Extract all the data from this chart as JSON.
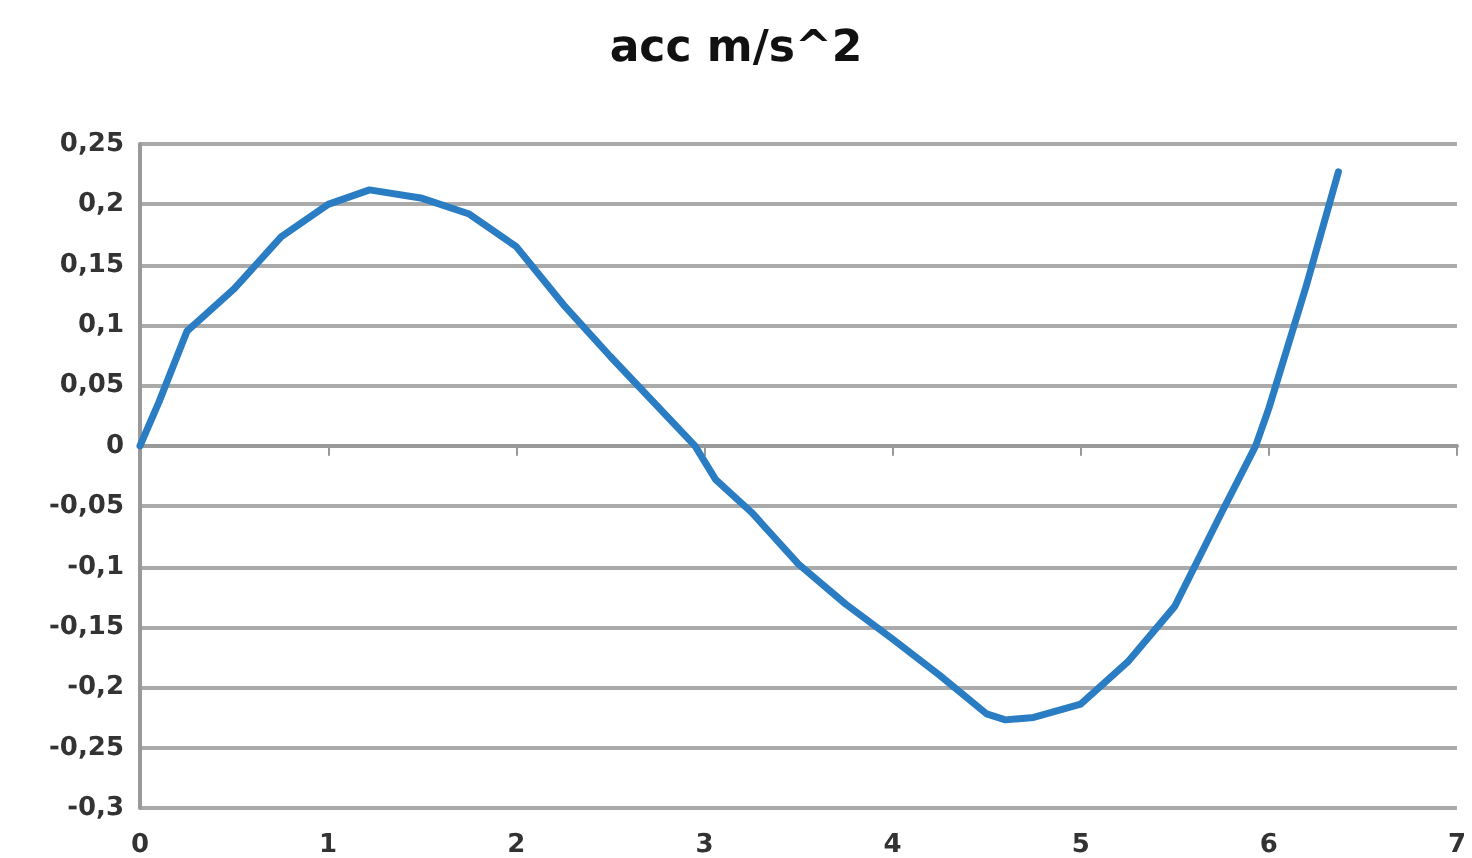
{
  "chart_data": {
    "type": "line",
    "title": "acc m/s^2",
    "x": [
      0,
      0.1,
      0.25,
      0.5,
      0.75,
      1,
      1.22,
      1.5,
      1.75,
      2,
      2.25,
      2.5,
      2.95,
      3.06,
      3.25,
      3.5,
      3.75,
      4,
      4.25,
      4.5,
      4.6,
      4.75,
      5,
      5.25,
      5.5,
      5.75,
      5.93,
      6,
      6.2,
      6.37
    ],
    "series": [
      {
        "color": "#2a7dc2",
        "values": [
          0,
          0.036,
          0.095,
          0.13,
          0.173,
          0.2,
          0.212,
          0.205,
          0.192,
          0.165,
          0.117,
          0.074,
          0,
          -0.028,
          -0.055,
          -0.098,
          -0.131,
          -0.16,
          -0.19,
          -0.222,
          -0.227,
          -0.225,
          -0.214,
          -0.179,
          -0.133,
          -0.055,
          0,
          0.031,
          0.133,
          0.227
        ]
      }
    ],
    "xlim": [
      0,
      7
    ],
    "xticks": [
      0,
      1,
      2,
      3,
      4,
      5,
      6,
      7
    ],
    "ylim": [
      -0.3,
      0.25
    ],
    "yticks": [
      {
        "value": -0.3,
        "label": "-0,3"
      },
      {
        "value": -0.25,
        "label": "-0,25"
      },
      {
        "value": -0.2,
        "label": "-0,2"
      },
      {
        "value": -0.15,
        "label": "-0,15"
      },
      {
        "value": -0.1,
        "label": "-0,1"
      },
      {
        "value": -0.05,
        "label": "-0,05"
      },
      {
        "value": 0,
        "label": "0"
      },
      {
        "value": 0.05,
        "label": "0,05"
      },
      {
        "value": 0.1,
        "label": "0,1"
      },
      {
        "value": 0.15,
        "label": "0,15"
      },
      {
        "value": 0.2,
        "label": "0,2"
      },
      {
        "value": 0.25,
        "label": "0,25"
      }
    ],
    "grid": "y",
    "marker": "none",
    "line_style": "solid"
  }
}
